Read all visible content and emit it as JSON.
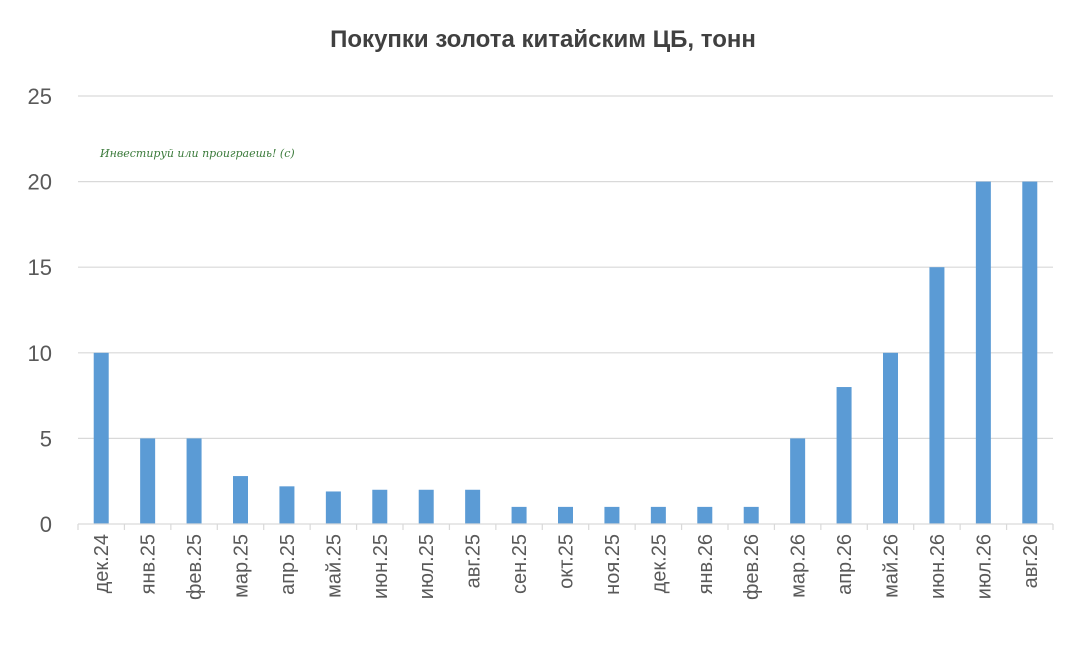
{
  "chart_data": {
    "type": "bar",
    "title": "Покупки золота китайским ЦБ, тонн",
    "watermark": "Инвестируй или проиграешь! (с)",
    "categories": [
      "дек.24",
      "янв.25",
      "фев.25",
      "мар.25",
      "апр.25",
      "май.25",
      "июн.25",
      "июл.25",
      "авг.25",
      "сен.25",
      "окт.25",
      "ноя.25",
      "дек.25",
      "янв.26",
      "фев.26",
      "мар.26",
      "апр.26",
      "май.26",
      "июн.26",
      "июл.26",
      "авг.26"
    ],
    "values": [
      10,
      5,
      5,
      2.8,
      2.2,
      1.9,
      2,
      2,
      2,
      1,
      1,
      1,
      1,
      1,
      1,
      5,
      8,
      10,
      15,
      20,
      20
    ],
    "ylim": [
      0,
      25
    ],
    "yticks": [
      "0",
      "5",
      "10",
      "15",
      "20",
      "25"
    ],
    "grid": true,
    "bar_color": "#5b9bd5",
    "grid_color": "#d9d9d9"
  }
}
